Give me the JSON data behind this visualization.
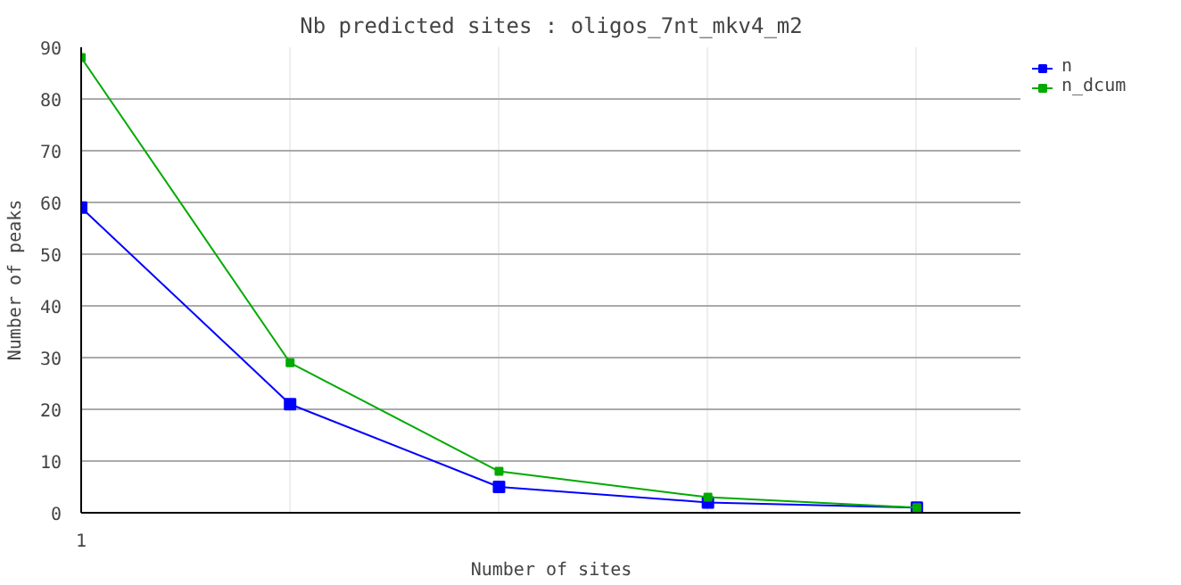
{
  "chart_data": {
    "type": "line",
    "title": "Nb predicted sites : oligos_7nt_mkv4_m2",
    "xlabel": "Number of sites",
    "ylabel": "Number of peaks",
    "categories": [
      "1",
      null,
      null,
      null,
      null
    ],
    "series": [
      {
        "name": "n",
        "color": "#0000ff",
        "values": [
          59,
          21,
          5,
          2,
          1
        ]
      },
      {
        "name": "n_dcum",
        "color": "#00aa00",
        "values": [
          88,
          29,
          8,
          3,
          1
        ]
      }
    ],
    "ylim": [
      0,
      90
    ],
    "yticks": [
      0,
      10,
      20,
      30,
      40,
      50,
      60,
      70,
      80,
      90
    ],
    "grid": true,
    "legend": "top right",
    "marker": "square",
    "line_style": "solid"
  }
}
